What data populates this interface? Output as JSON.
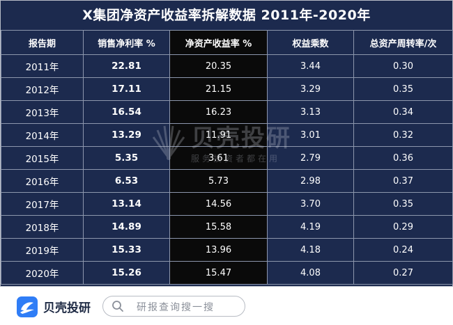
{
  "title": "X集团净资产收益率拆解数据 2011年-2020年",
  "table": {
    "headers": [
      "报告期",
      "销售净利率 %",
      "净资产收益率 %",
      "权益乘数",
      "总资产周转率/次"
    ],
    "rows": [
      [
        "2011年",
        "22.81",
        "20.35",
        "3.44",
        "0.30"
      ],
      [
        "2012年",
        "17.11",
        "21.15",
        "3.29",
        "0.35"
      ],
      [
        "2013年",
        "16.54",
        "16.23",
        "3.13",
        "0.34"
      ],
      [
        "2014年",
        "13.29",
        "11.91",
        "3.01",
        "0.32"
      ],
      [
        "2015年",
        "5.35",
        "3.61",
        "2.79",
        "0.36"
      ],
      [
        "2016年",
        "6.53",
        "5.73",
        "2.98",
        "0.37"
      ],
      [
        "2017年",
        "13.14",
        "14.56",
        "3.70",
        "0.35"
      ],
      [
        "2018年",
        "14.89",
        "15.58",
        "4.19",
        "0.29"
      ],
      [
        "2019年",
        "15.33",
        "13.96",
        "4.18",
        "0.24"
      ],
      [
        "2020年",
        "15.26",
        "15.47",
        "4.08",
        "0.27"
      ]
    ]
  },
  "watermark": {
    "brand": "贝壳投研",
    "slogan": "服务投资者都在用"
  },
  "footer": {
    "logo_icon": "shell-logo-icon",
    "brand": "贝壳投研",
    "search_placeholder": "研报查询搜一搜",
    "search_icon": "search-icon"
  },
  "colors": {
    "background": "#1c2a4e",
    "highlight_column": "#0a0a0a",
    "accent": "#2f7df6"
  }
}
